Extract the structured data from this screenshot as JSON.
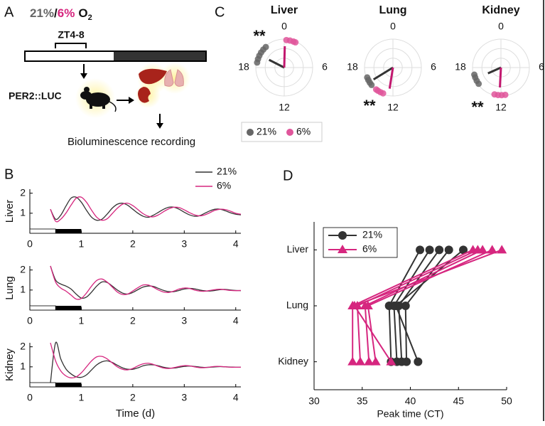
{
  "panels": [
    "A",
    "B",
    "C",
    "D"
  ],
  "diagram": {
    "title": [
      "21%",
      "/",
      "6%",
      "O",
      "2"
    ],
    "window": "ZT4-8",
    "reporter": "PER2::LUC",
    "readout": "Bioluminescence recording"
  },
  "chart_data": [
    {
      "type": "line",
      "ylabel": "Liver",
      "x": [
        0.4,
        0.5,
        0.6,
        0.7,
        0.8,
        0.9,
        1.0,
        1.1,
        1.2,
        1.3,
        1.4,
        1.5,
        1.6,
        1.7,
        1.8,
        1.9,
        2.0,
        2.1,
        2.2,
        2.3,
        2.4,
        2.5,
        2.6,
        2.7,
        2.8,
        2.9,
        3.0,
        3.1,
        3.2,
        3.3,
        3.4,
        3.5,
        3.6,
        3.7,
        3.8,
        3.9,
        4.0,
        4.1
      ],
      "series": [
        {
          "name": "21%",
          "color": "#333333",
          "values": [
            1.2,
            0.7,
            0.9,
            1.35,
            1.75,
            1.8,
            1.55,
            1.15,
            0.8,
            0.65,
            0.7,
            0.95,
            1.25,
            1.45,
            1.5,
            1.4,
            1.2,
            1.0,
            0.85,
            0.8,
            0.9,
            1.05,
            1.2,
            1.3,
            1.3,
            1.2,
            1.05,
            0.92,
            0.85,
            0.88,
            1.0,
            1.12,
            1.2,
            1.2,
            1.12,
            1.02,
            0.95,
            0.92
          ]
        },
        {
          "name": "6%",
          "color": "#d6267f",
          "values": [
            1.2,
            0.6,
            0.7,
            1.0,
            1.4,
            1.75,
            1.8,
            1.55,
            1.15,
            0.8,
            0.65,
            0.72,
            0.98,
            1.25,
            1.45,
            1.5,
            1.38,
            1.18,
            0.98,
            0.85,
            0.82,
            0.92,
            1.08,
            1.22,
            1.3,
            1.28,
            1.17,
            1.03,
            0.92,
            0.87,
            0.92,
            1.03,
            1.15,
            1.2,
            1.18,
            1.1,
            1.0,
            0.95
          ]
        }
      ],
      "xlim": [
        0,
        4.1
      ],
      "xticks": [
        0,
        1,
        2,
        3,
        4
      ],
      "ylim": [
        0,
        2.2
      ],
      "yticks": [
        1,
        2
      ],
      "legend": "upper right"
    },
    {
      "type": "line",
      "ylabel": "Lung",
      "x": [
        0.4,
        0.5,
        0.6,
        0.7,
        0.8,
        0.9,
        1.0,
        1.1,
        1.2,
        1.3,
        1.4,
        1.5,
        1.6,
        1.7,
        1.8,
        1.9,
        2.0,
        2.1,
        2.2,
        2.3,
        2.4,
        2.5,
        2.6,
        2.7,
        2.8,
        2.9,
        3.0,
        3.1,
        3.2,
        3.3,
        3.4,
        3.5,
        3.6,
        3.7,
        3.8,
        3.9,
        4.0,
        4.1
      ],
      "series": [
        {
          "name": "21%",
          "color": "#333333",
          "values": [
            2.2,
            1.5,
            1.3,
            1.2,
            1.05,
            0.8,
            0.6,
            0.65,
            0.9,
            1.2,
            1.4,
            1.38,
            1.2,
            1.0,
            0.85,
            0.8,
            0.88,
            1.02,
            1.15,
            1.2,
            1.18,
            1.08,
            0.98,
            0.92,
            0.92,
            0.98,
            1.05,
            1.08,
            1.06,
            1.0,
            0.96,
            0.95,
            0.98,
            1.02,
            1.03,
            1.0,
            0.98,
            0.97
          ]
        },
        {
          "name": "6%",
          "color": "#d6267f",
          "values": [
            2.2,
            1.4,
            1.1,
            0.95,
            0.75,
            0.55,
            0.58,
            0.85,
            1.2,
            1.48,
            1.55,
            1.4,
            1.15,
            0.9,
            0.78,
            0.8,
            0.95,
            1.12,
            1.25,
            1.25,
            1.14,
            1.0,
            0.9,
            0.88,
            0.95,
            1.05,
            1.1,
            1.08,
            1.0,
            0.95,
            0.94,
            0.98,
            1.02,
            1.04,
            1.01,
            0.98,
            0.97,
            0.98
          ]
        }
      ],
      "xlim": [
        0,
        4.1
      ],
      "xticks": [
        0,
        1,
        2,
        3,
        4
      ],
      "ylim": [
        0,
        2.2
      ],
      "yticks": [
        1,
        2
      ]
    },
    {
      "type": "line",
      "ylabel": "Kidney",
      "xlabel": "Time (d)",
      "x": [
        0.4,
        0.5,
        0.6,
        0.7,
        0.8,
        0.9,
        1.0,
        1.1,
        1.2,
        1.3,
        1.4,
        1.5,
        1.6,
        1.7,
        1.8,
        1.9,
        2.0,
        2.1,
        2.2,
        2.3,
        2.4,
        2.5,
        2.6,
        2.7,
        2.8,
        2.9,
        3.0,
        3.1,
        3.2,
        3.3,
        3.4,
        3.5,
        3.6,
        3.7,
        3.8,
        3.9,
        4.0,
        4.1
      ],
      "series": [
        {
          "name": "21%",
          "color": "#333333",
          "values": [
            0.2,
            2.2,
            1.4,
            0.9,
            0.65,
            0.5,
            0.48,
            0.6,
            0.85,
            1.1,
            1.25,
            1.3,
            1.22,
            1.08,
            0.95,
            0.88,
            0.88,
            0.95,
            1.05,
            1.1,
            1.1,
            1.05,
            0.98,
            0.94,
            0.94,
            0.98,
            1.02,
            1.04,
            1.02,
            0.99,
            0.97,
            0.98,
            1.0,
            1.01,
            1.0,
            0.99,
            0.98,
            0.98
          ]
        },
        {
          "name": "6%",
          "color": "#d6267f",
          "values": [
            2.2,
            1.3,
            0.8,
            0.55,
            0.45,
            0.5,
            0.7,
            1.0,
            1.3,
            1.5,
            1.52,
            1.4,
            1.2,
            1.0,
            0.88,
            0.85,
            0.92,
            1.05,
            1.15,
            1.18,
            1.12,
            1.02,
            0.94,
            0.92,
            0.96,
            1.02,
            1.06,
            1.05,
            1.0,
            0.96,
            0.96,
            0.99,
            1.02,
            1.02,
            1.0,
            0.98,
            0.98,
            0.98
          ]
        }
      ],
      "xlim": [
        0,
        4.1
      ],
      "xticks": [
        0,
        1,
        2,
        3,
        4
      ],
      "ylim": [
        0,
        2.2
      ],
      "yticks": [
        1,
        2
      ]
    },
    {
      "type": "polar",
      "title": "Liver",
      "annotation": "**",
      "thetalim": [
        0,
        24
      ],
      "thetaticks": [
        0,
        6,
        12,
        18
      ],
      "rlim": [
        0,
        1
      ],
      "rticks": [
        0.33,
        0.67,
        1
      ],
      "series": [
        {
          "name": "21%",
          "color": "#666666",
          "line_color": "#333333",
          "values": [
            18.7,
            19.2,
            19.7,
            20.2,
            20.7,
            21.2
          ],
          "mean_phase": 19.8,
          "mean_length": 0.6
        },
        {
          "name": "6%",
          "color": "#e0569b",
          "line_color": "#c2186f",
          "values": [
            0.3,
            0.8,
            1.3,
            1.6
          ],
          "mean_phase": 0.1,
          "mean_length": 0.75
        }
      ],
      "legend": "lower left"
    },
    {
      "type": "polar",
      "title": "Lung",
      "annotation": "**",
      "thetalim": [
        0,
        24
      ],
      "thetaticks": [
        0,
        6,
        12,
        18
      ],
      "rlim": [
        0,
        1
      ],
      "rticks": [
        0.33,
        0.67,
        1
      ],
      "series": [
        {
          "name": "21%",
          "color": "#666666",
          "line_color": "#333333",
          "values": [
            15.4,
            15.8,
            16.2,
            16.6
          ],
          "mean_phase": 15.9,
          "mean_length": 0.8
        },
        {
          "name": "6%",
          "color": "#e0569b",
          "line_color": "#c2186f",
          "values": [
            13.4,
            13.8,
            14.2,
            14.5
          ],
          "mean_phase": 12.6,
          "mean_length": 0.75
        }
      ]
    },
    {
      "type": "polar",
      "title": "Kidney",
      "annotation": "**",
      "thetalim": [
        0,
        24
      ],
      "thetaticks": [
        0,
        6,
        12,
        18
      ],
      "rlim": [
        0,
        1
      ],
      "rticks": [
        0.33,
        0.67,
        1
      ],
      "series": [
        {
          "name": "21%",
          "color": "#666666",
          "line_color": "#333333",
          "values": [
            15.6,
            16.1,
            16.6,
            17.0
          ],
          "mean_phase": 16.4,
          "mean_length": 0.5
        },
        {
          "name": "6%",
          "color": "#e0569b",
          "line_color": "#c2186f",
          "values": [
            11.4,
            11.9,
            12.4,
            12.9
          ],
          "mean_phase": 12.2,
          "mean_length": 0.7
        }
      ]
    },
    {
      "type": "dotline",
      "xlabel": "Peak time (CT)",
      "categories": [
        "Liver",
        "Lung",
        "Kidney"
      ],
      "xlim": [
        30,
        50
      ],
      "xticks": [
        30,
        35,
        40,
        45,
        50
      ],
      "series": [
        {
          "name": "21%",
          "color": "#333333",
          "marker": "circle",
          "values": [
            [
              41,
              37.8,
              38
            ],
            [
              42,
              38.3,
              38.6
            ],
            [
              43,
              38.8,
              39.1
            ],
            [
              44,
              39.5,
              39.6
            ],
            [
              45.5,
              38.5,
              40.8
            ]
          ]
        },
        {
          "name": "6%",
          "color": "#d6267f",
          "marker": "triangle",
          "values": [
            [
              46.5,
              34,
              34
            ],
            [
              47,
              34.5,
              34.8
            ],
            [
              47.5,
              35.3,
              35.7
            ],
            [
              48.5,
              35.6,
              36.4
            ],
            [
              49.5,
              34.2,
              38
            ]
          ]
        }
      ],
      "legend": "upper left"
    }
  ]
}
